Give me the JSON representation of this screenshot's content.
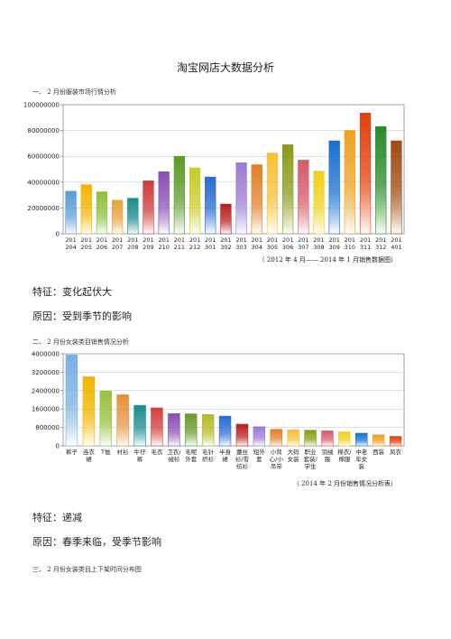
{
  "document": {
    "title": "淘宝网店大数据分析",
    "section1_heading": "一、 2 月份服装市场行情分析",
    "chart1_caption": "（ 2012 年 4 月—— 2014 年 1 月销售数据图）",
    "feature1": "特征：变化起伏大",
    "reason1": "原因：受到季节的影响",
    "section2_heading": "二、 2 月份女装类目销售情况分析",
    "chart2_caption": "（ 2014 年 2 月份销售情况分析表）",
    "feature2": "特征：递减",
    "reason2": "原因：春季来临，受季节影响",
    "section3_heading": "三、 2 月份女装类目上下架时间分布图"
  },
  "colors": {
    "chart_border": "#9aa4b2",
    "grid": "#bfbfbf"
  },
  "chart_data": [
    {
      "type": "bar",
      "ylim": [
        0,
        100000000
      ],
      "yticks": [
        "0",
        "20000000",
        "40000000",
        "60000000",
        "80000000",
        "100000000"
      ],
      "grid": true,
      "categories": [
        [
          "201",
          "204"
        ],
        [
          "201",
          "205"
        ],
        [
          "201",
          "206"
        ],
        [
          "201",
          "207"
        ],
        [
          "201",
          "208"
        ],
        [
          "201",
          "209"
        ],
        [
          "201",
          "210"
        ],
        [
          "201",
          "211"
        ],
        [
          "201",
          "212"
        ],
        [
          "201",
          "301"
        ],
        [
          "201",
          "302"
        ],
        [
          "201",
          "303"
        ],
        [
          "201",
          "304"
        ],
        [
          "201",
          "305"
        ],
        [
          "201",
          "306"
        ],
        [
          "201",
          "307"
        ],
        [
          "201",
          "308"
        ],
        [
          "201",
          "309"
        ],
        [
          "201",
          "310"
        ],
        [
          "201",
          "311"
        ],
        [
          "201",
          "312"
        ],
        [
          "201",
          "401"
        ]
      ],
      "values": [
        33000000,
        38000000,
        32500000,
        26000000,
        27500000,
        41000000,
        48000000,
        60000000,
        51000000,
        44000000,
        23000000,
        55000000,
        53500000,
        62500000,
        69000000,
        57000000,
        48500000,
        72000000,
        80000000,
        93500000,
        83000000,
        72000000
      ],
      "bar_colors": [
        "#5b9bd5",
        "#f2b400",
        "#8cbf3f",
        "#e8a33b",
        "#1a8c8c",
        "#cf3a3a",
        "#8a4fb3",
        "#5a9a2a",
        "#c9c92a",
        "#2a6bd1",
        "#b81f1f",
        "#9b7bd1",
        "#e0802a",
        "#f4c03a",
        "#8a9a1a",
        "#d45a6a",
        "#f0d020",
        "#1a6fd0",
        "#f0a020",
        "#e04010",
        "#2a8a2a",
        "#a04a10"
      ]
    },
    {
      "type": "bar",
      "ylim": [
        0,
        4000000
      ],
      "yticks": [
        "0",
        "800000",
        "1600000",
        "2400000",
        "3200000",
        "4000000"
      ],
      "grid": true,
      "categories": [
        [
          "裤子"
        ],
        [
          "连衣",
          "裙"
        ],
        [
          "T恤"
        ],
        [
          "衬衫"
        ],
        [
          "牛仔",
          "裤"
        ],
        [
          "毛衣"
        ],
        [
          "卫衣/",
          "绒衫"
        ],
        [
          "毛呢",
          "外套"
        ],
        [
          "毛针",
          "织衫"
        ],
        [
          "半身",
          "裙"
        ],
        [
          "蕾丝",
          "衫/雪",
          "纺衫"
        ],
        [
          "短外",
          "套"
        ],
        [
          "小背",
          "心/小",
          "吊带"
        ],
        [
          "大码",
          "女装"
        ],
        [
          "职业",
          "套装/",
          "学生"
        ],
        [
          "羽绒",
          "服"
        ],
        [
          "棉衣/",
          "棉服"
        ],
        [
          "中老",
          "年女",
          "装"
        ],
        [
          "西装"
        ],
        [
          "风衣"
        ]
      ],
      "values": [
        3950000,
        3000000,
        2380000,
        2220000,
        1760000,
        1650000,
        1400000,
        1390000,
        1360000,
        1290000,
        940000,
        830000,
        720000,
        700000,
        680000,
        650000,
        610000,
        550000,
        480000,
        410000
      ],
      "bar_colors": [
        "#7ab0e0",
        "#f2b400",
        "#9ac040",
        "#e8903a",
        "#1a8c8c",
        "#d04040",
        "#8a4fb3",
        "#6a9a2a",
        "#b8b82a",
        "#2a6bd1",
        "#b81f1f",
        "#9b7bd1",
        "#e0802a",
        "#f4c03a",
        "#8a9a1a",
        "#d45a6a",
        "#f0d020",
        "#1a6fd0",
        "#f0a020",
        "#e04010"
      ]
    }
  ]
}
